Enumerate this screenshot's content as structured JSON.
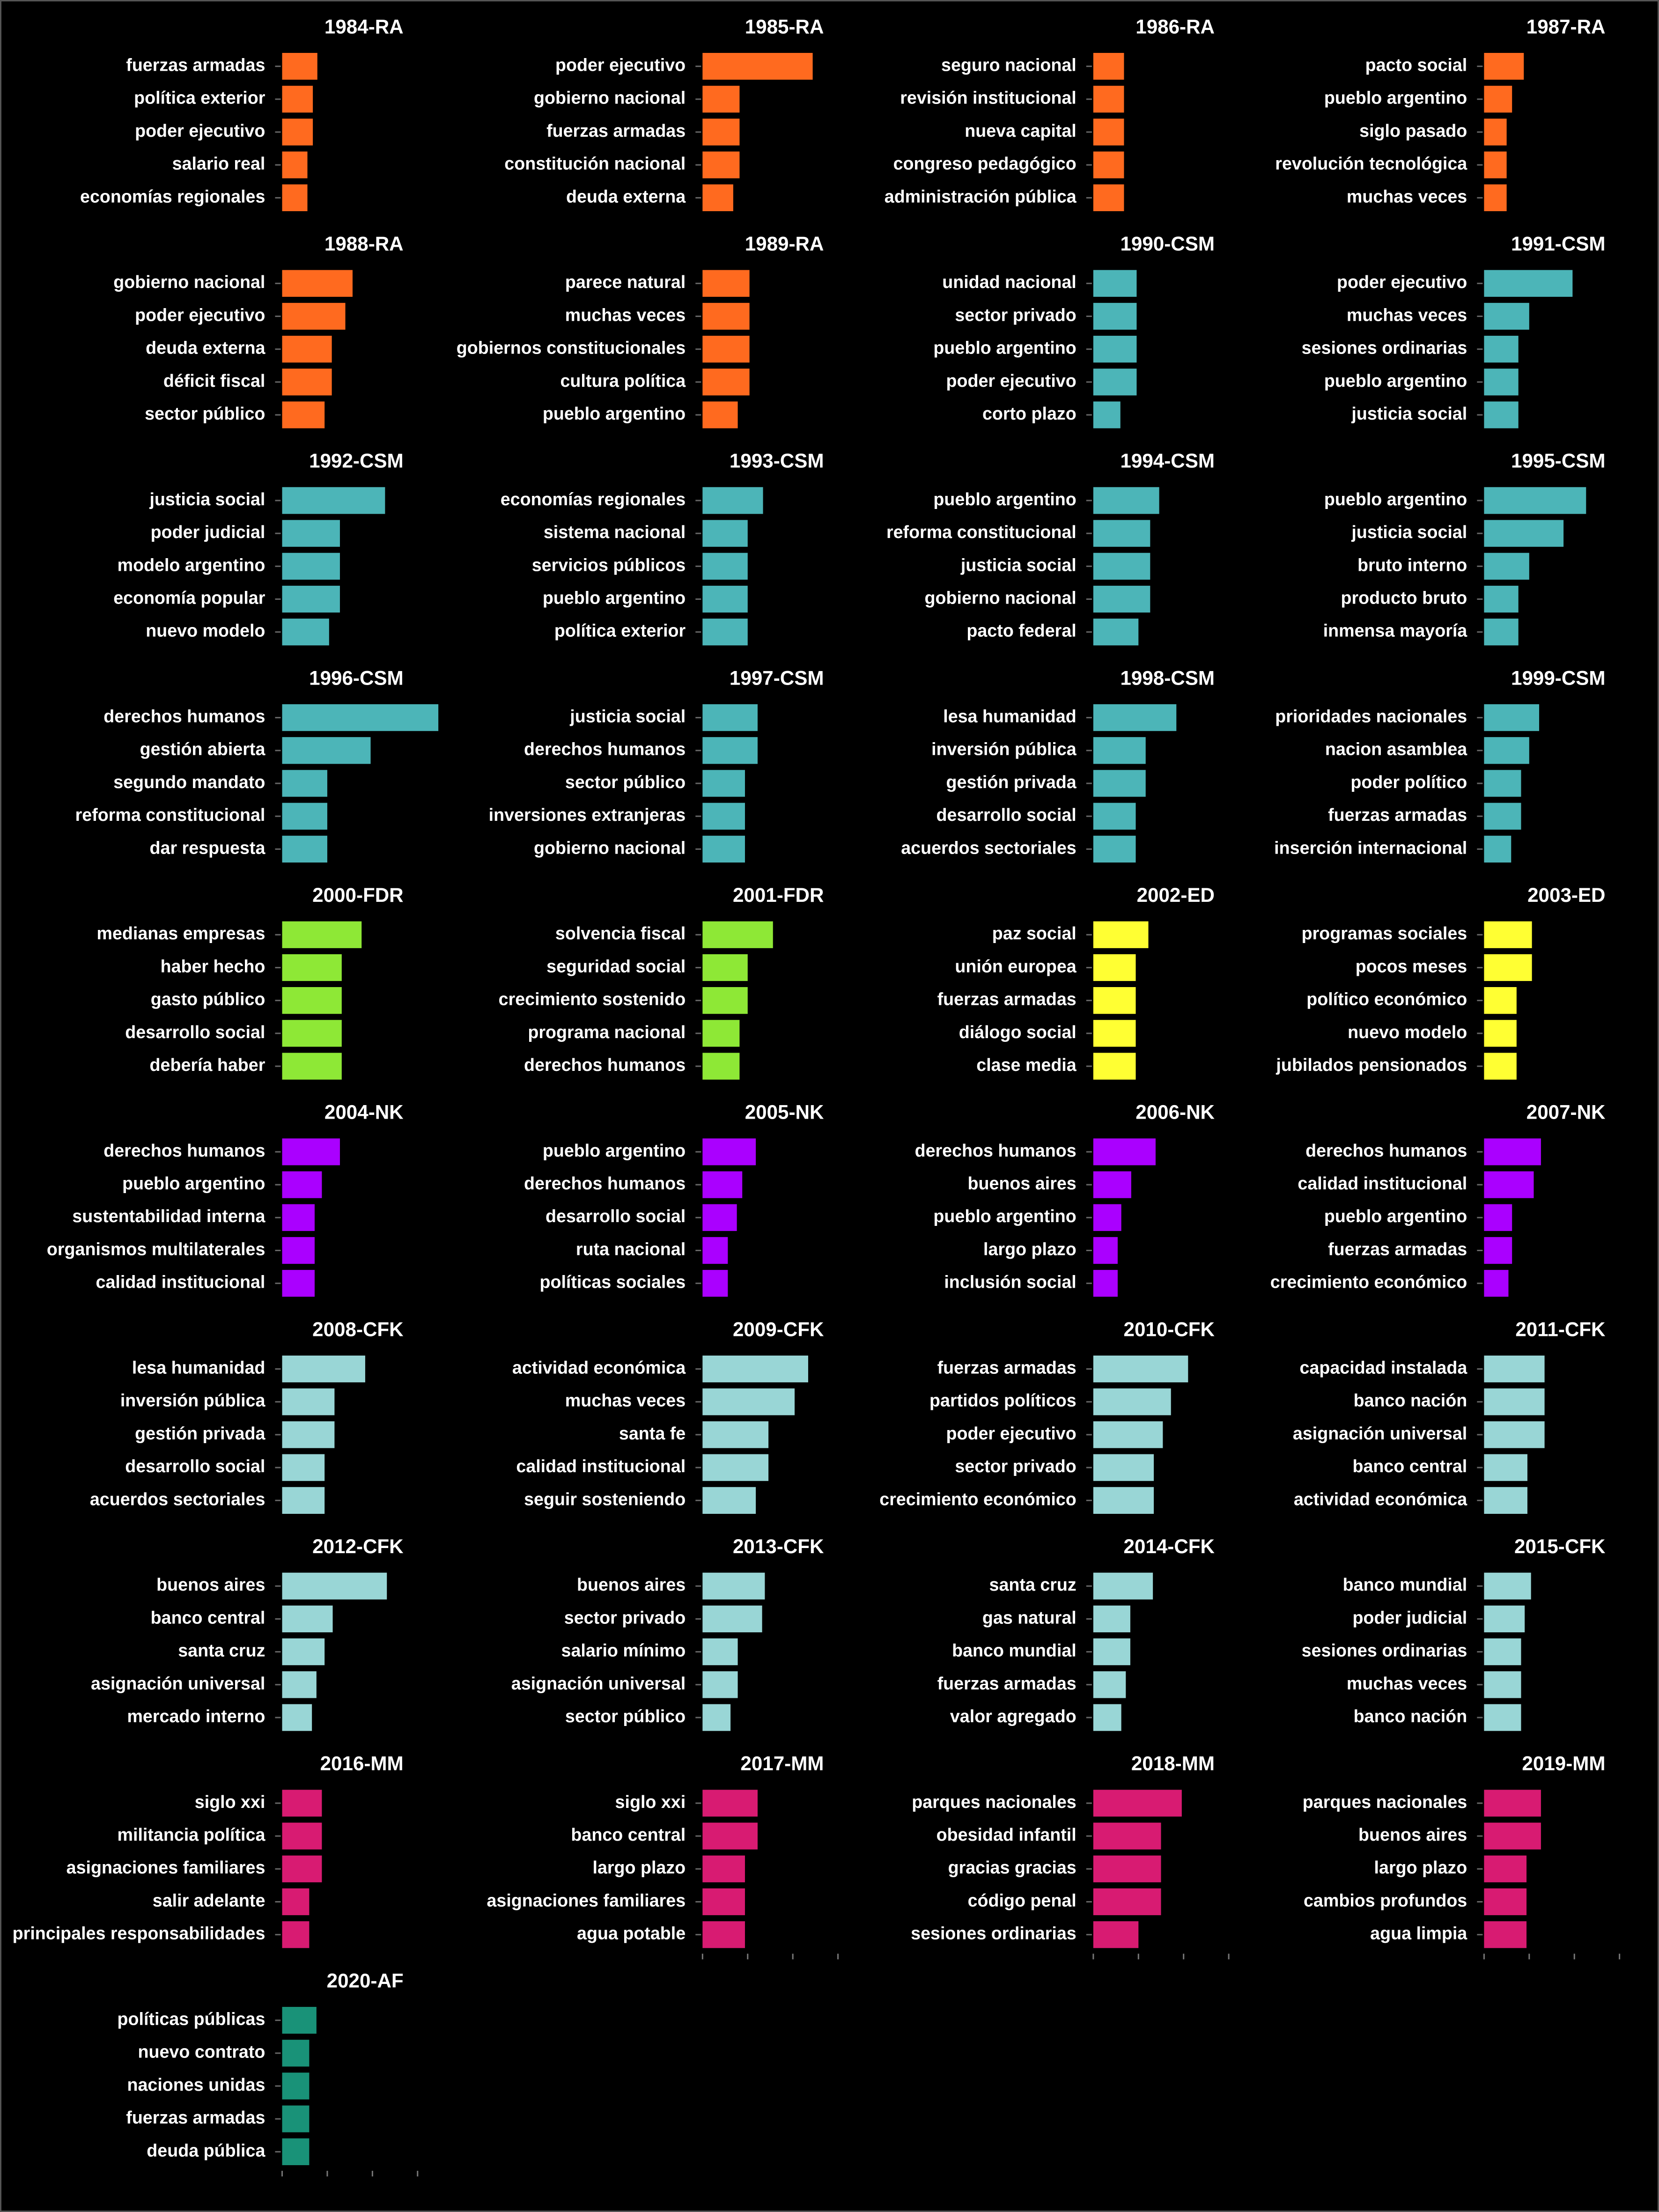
{
  "chart_data": [
    {
      "type": "bar",
      "title": "1984-RA",
      "categories": [
        "fuerzas armadas",
        "política exterior",
        "poder ejecutivo",
        "salario real",
        "economías regionales"
      ],
      "values": [
        3.9,
        3.4,
        3.4,
        2.8,
        2.8
      ],
      "color": "#ff6a1f",
      "xlim": [
        0,
        20
      ]
    },
    {
      "type": "bar",
      "title": "1985-RA",
      "categories": [
        "poder ejecutivo",
        "gobierno nacional",
        "fuerzas armadas",
        "constitución nacional",
        "deuda externa"
      ],
      "values": [
        12.2,
        4.1,
        4.1,
        4.1,
        3.4
      ],
      "color": "#ff6a1f",
      "xlim": [
        0,
        20
      ]
    },
    {
      "type": "bar",
      "title": "1986-RA",
      "categories": [
        "seguro nacional",
        "revisión institucional",
        "nueva capital",
        "congreso pedagógico",
        "administración pública"
      ],
      "values": [
        3.4,
        3.4,
        3.4,
        3.4,
        3.4
      ],
      "color": "#ff6a1f",
      "xlim": [
        0,
        20
      ]
    },
    {
      "type": "bar",
      "title": "1987-RA",
      "categories": [
        "pacto social",
        "pueblo argentino",
        "siglo pasado",
        "revolución tecnológica",
        "muchas veces"
      ],
      "values": [
        4.4,
        3.1,
        2.5,
        2.5,
        2.5
      ],
      "color": "#ff6a1f",
      "xlim": [
        0,
        20
      ]
    },
    {
      "type": "bar",
      "title": "1988-RA",
      "categories": [
        "gobierno nacional",
        "poder ejecutivo",
        "deuda externa",
        "déficit fiscal",
        "sector público"
      ],
      "values": [
        7.8,
        7.0,
        5.5,
        5.5,
        4.7
      ],
      "color": "#ff6a1f",
      "xlim": [
        0,
        20
      ]
    },
    {
      "type": "bar",
      "title": "1989-RA",
      "categories": [
        "parece natural",
        "muchas veces",
        "gobiernos constitucionales",
        "cultura política",
        "pueblo argentino"
      ],
      "values": [
        5.2,
        5.2,
        5.2,
        5.2,
        3.9
      ],
      "color": "#ff6a1f",
      "xlim": [
        0,
        20
      ]
    },
    {
      "type": "bar",
      "title": "1990-CSM",
      "categories": [
        "unidad nacional",
        "sector privado",
        "pueblo argentino",
        "poder ejecutivo",
        "corto plazo"
      ],
      "values": [
        4.8,
        4.8,
        4.8,
        4.8,
        3.0
      ],
      "color": "#4cb5b8",
      "xlim": [
        0,
        20
      ]
    },
    {
      "type": "bar",
      "title": "1991-CSM",
      "categories": [
        "poder ejecutivo",
        "muchas veces",
        "sesiones ordinarias",
        "pueblo argentino",
        "justicia social"
      ],
      "values": [
        9.8,
        5.0,
        3.8,
        3.8,
        3.8
      ],
      "color": "#4cb5b8",
      "xlim": [
        0,
        20
      ]
    },
    {
      "type": "bar",
      "title": "1992-CSM",
      "categories": [
        "justicia social",
        "poder judicial",
        "modelo argentino",
        "economía popular",
        "nuevo modelo"
      ],
      "values": [
        11.4,
        6.4,
        6.4,
        6.4,
        5.2
      ],
      "color": "#4cb5b8",
      "xlim": [
        0,
        20
      ]
    },
    {
      "type": "bar",
      "title": "1993-CSM",
      "categories": [
        "economías regionales",
        "sistema nacional",
        "servicios públicos",
        "pueblo argentino",
        "política exterior"
      ],
      "values": [
        6.7,
        5.0,
        5.0,
        5.0,
        5.0
      ],
      "color": "#4cb5b8",
      "xlim": [
        0,
        20
      ]
    },
    {
      "type": "bar",
      "title": "1994-CSM",
      "categories": [
        "pueblo argentino",
        "reforma constitucional",
        "justicia social",
        "gobierno nacional",
        "pacto federal"
      ],
      "values": [
        7.3,
        6.3,
        6.3,
        6.3,
        5.0
      ],
      "color": "#4cb5b8",
      "xlim": [
        0,
        20
      ]
    },
    {
      "type": "bar",
      "title": "1995-CSM",
      "categories": [
        "pueblo argentino",
        "justicia social",
        "bruto interno",
        "producto bruto",
        "inmensa mayoría"
      ],
      "values": [
        11.3,
        8.8,
        5.0,
        3.8,
        3.8
      ],
      "color": "#4cb5b8",
      "xlim": [
        0,
        20
      ]
    },
    {
      "type": "bar",
      "title": "1996-CSM",
      "categories": [
        "derechos humanos",
        "gestión abierta",
        "segundo mandato",
        "reforma constitucional",
        "dar respuesta"
      ],
      "values": [
        17.3,
        9.8,
        5.0,
        5.0,
        5.0
      ],
      "color": "#4cb5b8",
      "xlim": [
        0,
        20
      ]
    },
    {
      "type": "bar",
      "title": "1997-CSM",
      "categories": [
        "justicia social",
        "derechos humanos",
        "sector público",
        "inversiones extranjeras",
        "gobierno nacional"
      ],
      "values": [
        6.1,
        6.1,
        4.7,
        4.7,
        4.7
      ],
      "color": "#4cb5b8",
      "xlim": [
        0,
        20
      ]
    },
    {
      "type": "bar",
      "title": "1998-CSM",
      "categories": [
        "lesa humanidad",
        "inversión pública",
        "gestión privada",
        "desarrollo social",
        "acuerdos sectoriales"
      ],
      "values": [
        9.2,
        5.8,
        5.8,
        4.7,
        4.7
      ],
      "color": "#4cb5b8",
      "xlim": [
        0,
        20
      ]
    },
    {
      "type": "bar",
      "title": "1999-CSM",
      "categories": [
        "prioridades nacionales",
        "nacion asamblea",
        "poder político",
        "fuerzas armadas",
        "inserción internacional"
      ],
      "values": [
        6.1,
        5.0,
        4.1,
        4.1,
        3.0
      ],
      "color": "#4cb5b8",
      "xlim": [
        0,
        20
      ]
    },
    {
      "type": "bar",
      "title": "2000-FDR",
      "categories": [
        "medianas empresas",
        "haber hecho",
        "gasto público",
        "desarrollo social",
        "debería haber"
      ],
      "values": [
        8.8,
        6.6,
        6.6,
        6.6,
        6.6
      ],
      "color": "#8ee836",
      "xlim": [
        0,
        20
      ]
    },
    {
      "type": "bar",
      "title": "2001-FDR",
      "categories": [
        "solvencia fiscal",
        "seguridad social",
        "crecimiento sostenido",
        "programa nacional",
        "derechos humanos"
      ],
      "values": [
        7.8,
        5.0,
        5.0,
        4.1,
        4.1
      ],
      "color": "#8ee836",
      "xlim": [
        0,
        20
      ]
    },
    {
      "type": "bar",
      "title": "2002-ED",
      "categories": [
        "paz social",
        "unión europea",
        "fuerzas armadas",
        "diálogo social",
        "clase media"
      ],
      "values": [
        6.1,
        4.7,
        4.7,
        4.7,
        4.7
      ],
      "color": "#ffff33",
      "xlim": [
        0,
        20
      ]
    },
    {
      "type": "bar",
      "title": "2003-ED",
      "categories": [
        "programas sociales",
        "pocos meses",
        "político económico",
        "nuevo modelo",
        "jubilados pensionados"
      ],
      "values": [
        5.3,
        5.3,
        3.6,
        3.6,
        3.6
      ],
      "color": "#ffff33",
      "xlim": [
        0,
        20
      ]
    },
    {
      "type": "bar",
      "title": "2004-NK",
      "categories": [
        "derechos humanos",
        "pueblo argentino",
        "sustentabilidad interna",
        "organismos multilaterales",
        "calidad institucional"
      ],
      "values": [
        6.4,
        4.4,
        3.6,
        3.6,
        3.6
      ],
      "color": "#aa00ff",
      "xlim": [
        0,
        20
      ]
    },
    {
      "type": "bar",
      "title": "2005-NK",
      "categories": [
        "pueblo argentino",
        "derechos humanos",
        "desarrollo social",
        "ruta nacional",
        "políticas sociales"
      ],
      "values": [
        5.9,
        4.4,
        3.8,
        2.8,
        2.8
      ],
      "color": "#aa00ff",
      "xlim": [
        0,
        20
      ]
    },
    {
      "type": "bar",
      "title": "2006-NK",
      "categories": [
        "derechos humanos",
        "buenos aires",
        "pueblo argentino",
        "largo plazo",
        "inclusión social"
      ],
      "values": [
        6.9,
        4.2,
        3.1,
        2.7,
        2.7
      ],
      "color": "#aa00ff",
      "xlim": [
        0,
        20
      ]
    },
    {
      "type": "bar",
      "title": "2007-NK",
      "categories": [
        "derechos humanos",
        "calidad institucional",
        "pueblo argentino",
        "fuerzas armadas",
        "crecimiento económico"
      ],
      "values": [
        6.3,
        5.5,
        3.1,
        3.1,
        2.7
      ],
      "color": "#aa00ff",
      "xlim": [
        0,
        20
      ]
    },
    {
      "type": "bar",
      "title": "2008-CFK",
      "categories": [
        "lesa humanidad",
        "inversión pública",
        "gestión privada",
        "desarrollo social",
        "acuerdos sectoriales"
      ],
      "values": [
        9.2,
        5.8,
        5.8,
        4.7,
        4.7
      ],
      "color": "#99d6d6",
      "xlim": [
        0,
        20
      ]
    },
    {
      "type": "bar",
      "title": "2009-CFK",
      "categories": [
        "actividad económica",
        "muchas veces",
        "santa fe",
        "calidad institucional",
        "seguir sosteniendo"
      ],
      "values": [
        11.7,
        10.2,
        7.3,
        7.3,
        5.9
      ],
      "color": "#99d6d6",
      "xlim": [
        0,
        20
      ]
    },
    {
      "type": "bar",
      "title": "2010-CFK",
      "categories": [
        "fuerzas armadas",
        "partidos políticos",
        "poder ejecutivo",
        "sector privado",
        "crecimiento económico"
      ],
      "values": [
        10.5,
        8.6,
        7.7,
        6.7,
        6.7
      ],
      "color": "#99d6d6",
      "xlim": [
        0,
        20
      ]
    },
    {
      "type": "bar",
      "title": "2011-CFK",
      "categories": [
        "capacidad instalada",
        "banco nación",
        "asignación universal",
        "banco central",
        "actividad económica"
      ],
      "values": [
        6.7,
        6.7,
        6.7,
        4.8,
        4.8
      ],
      "color": "#99d6d6",
      "xlim": [
        0,
        20
      ]
    },
    {
      "type": "bar",
      "title": "2012-CFK",
      "categories": [
        "buenos aires",
        "banco central",
        "santa cruz",
        "asignación universal",
        "mercado interno"
      ],
      "values": [
        11.6,
        5.6,
        4.7,
        3.8,
        3.3
      ],
      "color": "#99d6d6",
      "xlim": [
        0,
        20
      ]
    },
    {
      "type": "bar",
      "title": "2013-CFK",
      "categories": [
        "buenos aires",
        "sector privado",
        "salario mínimo",
        "asignación universal",
        "sector público"
      ],
      "values": [
        6.9,
        6.6,
        3.9,
        3.9,
        3.1
      ],
      "color": "#99d6d6",
      "xlim": [
        0,
        20
      ]
    },
    {
      "type": "bar",
      "title": "2014-CFK",
      "categories": [
        "santa cruz",
        "gas natural",
        "banco mundial",
        "fuerzas armadas",
        "valor agregado"
      ],
      "values": [
        6.6,
        4.1,
        4.1,
        3.6,
        3.1
      ],
      "color": "#99d6d6",
      "xlim": [
        0,
        20
      ]
    },
    {
      "type": "bar",
      "title": "2015-CFK",
      "categories": [
        "banco mundial",
        "poder judicial",
        "sesiones ordinarias",
        "muchas veces",
        "banco nación"
      ],
      "values": [
        5.2,
        4.5,
        4.1,
        4.1,
        4.1
      ],
      "color": "#99d6d6",
      "xlim": [
        0,
        20
      ]
    },
    {
      "type": "bar",
      "title": "2016-MM",
      "categories": [
        "siglo xxi",
        "militancia política",
        "asignaciones familiares",
        "salir adelante",
        "principales responsabilidades"
      ],
      "values": [
        4.4,
        4.4,
        4.4,
        3.0,
        3.0
      ],
      "color": "#d81b72",
      "xlim": [
        0,
        20
      ]
    },
    {
      "type": "bar",
      "title": "2017-MM",
      "categories": [
        "siglo xxi",
        "banco central",
        "largo plazo",
        "asignaciones familiares",
        "agua potable"
      ],
      "values": [
        6.1,
        6.1,
        4.7,
        4.7,
        4.7
      ],
      "color": "#d81b72",
      "xlim": [
        0,
        20
      ],
      "xticks": [
        0,
        5,
        10,
        15
      ]
    },
    {
      "type": "bar",
      "title": "2018-MM",
      "categories": [
        "parques nacionales",
        "obesidad infantil",
        "gracias gracias",
        "código penal",
        "sesiones ordinarias"
      ],
      "values": [
        9.8,
        7.5,
        7.5,
        7.5,
        5.0
      ],
      "color": "#d81b72",
      "xlim": [
        0,
        20
      ],
      "xticks": [
        0,
        5,
        10,
        15
      ]
    },
    {
      "type": "bar",
      "title": "2019-MM",
      "categories": [
        "parques nacionales",
        "buenos aires",
        "largo plazo",
        "cambios profundos",
        "agua limpia"
      ],
      "values": [
        6.3,
        6.3,
        4.7,
        4.7,
        4.7
      ],
      "color": "#d81b72",
      "xlim": [
        0,
        20
      ],
      "xticks": [
        0,
        5,
        10,
        15
      ]
    },
    {
      "type": "bar",
      "title": "2020-AF",
      "categories": [
        "políticas públicas",
        "nuevo contrato",
        "naciones unidas",
        "fuerzas armadas",
        "deuda pública"
      ],
      "values": [
        3.8,
        3.0,
        3.0,
        3.0,
        3.0
      ],
      "color": "#199278",
      "xlim": [
        0,
        20
      ],
      "xticks": [
        0,
        5,
        10,
        15
      ]
    }
  ]
}
